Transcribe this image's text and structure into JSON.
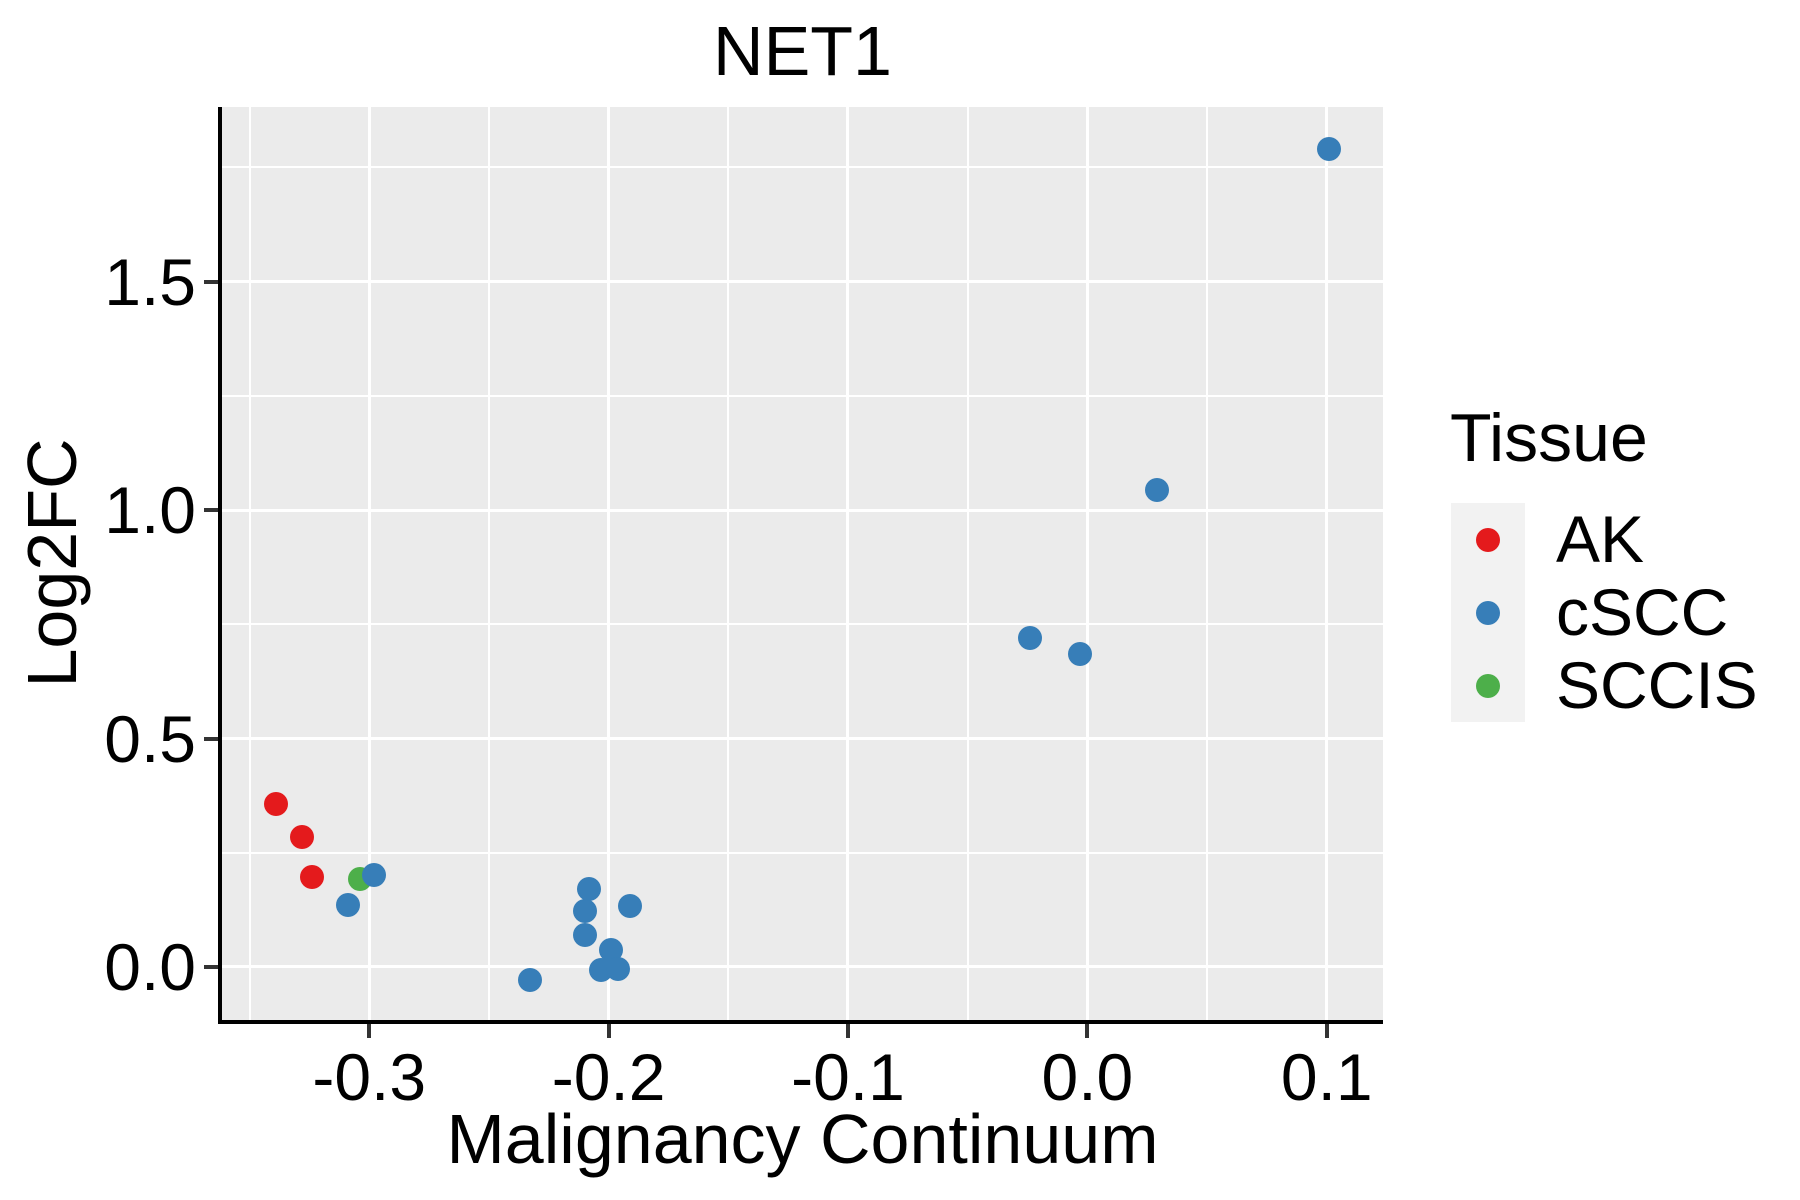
{
  "chart_data": {
    "type": "scatter",
    "title": "NET1",
    "xlabel": "Malignancy Continuum",
    "ylabel": "Log2FC",
    "legend_title": "Tissue",
    "legend_position": "right",
    "grid": true,
    "panel_bg": "#EBEBEB",
    "grid_color": "#FFFFFF",
    "axis_color": "#000000",
    "tick_color": "#333333",
    "text_color": "#000000",
    "legend_key_bg": "#F2F2F2",
    "xlim": [
      -0.3615,
      0.1235
    ],
    "ylim": [
      -0.116,
      1.882
    ],
    "x_ticks": {
      "values": [
        -0.3,
        -0.2,
        -0.1,
        0.0,
        0.1
      ],
      "labels": [
        "-0.3",
        "-0.2",
        "-0.1",
        "0.0",
        "0.1"
      ]
    },
    "y_ticks": {
      "values": [
        0.0,
        0.5,
        1.0,
        1.5
      ],
      "labels": [
        "0.0",
        "0.5",
        "1.0",
        "1.5"
      ]
    },
    "x_minor_ticks": [
      -0.35,
      -0.25,
      -0.15,
      -0.05,
      0.05
    ],
    "y_minor_ticks": [
      0.25,
      0.75,
      1.25,
      1.75
    ],
    "series": [
      {
        "name": "AK",
        "color": "#E41A1C",
        "z": 1,
        "points": [
          [
            -0.339,
            0.357
          ],
          [
            -0.328,
            0.285
          ],
          [
            -0.324,
            0.198
          ]
        ]
      },
      {
        "name": "cSCC",
        "color": "#377EB8",
        "z": 3,
        "points": [
          [
            -0.309,
            0.136
          ],
          [
            -0.298,
            0.201
          ],
          [
            -0.233,
            -0.028
          ],
          [
            -0.21,
            0.122
          ],
          [
            -0.208,
            0.171
          ],
          [
            -0.21,
            0.07
          ],
          [
            -0.199,
            0.037
          ],
          [
            -0.203,
            -0.007
          ],
          [
            -0.196,
            -0.005
          ],
          [
            -0.191,
            0.134
          ],
          [
            -0.024,
            0.721
          ],
          [
            -0.003,
            0.685
          ],
          [
            0.029,
            1.043
          ],
          [
            0.101,
            1.79
          ]
        ]
      },
      {
        "name": "SCCIS",
        "color": "#4DAF4A",
        "z": 2,
        "points": [
          [
            -0.304,
            0.192
          ]
        ]
      }
    ]
  }
}
